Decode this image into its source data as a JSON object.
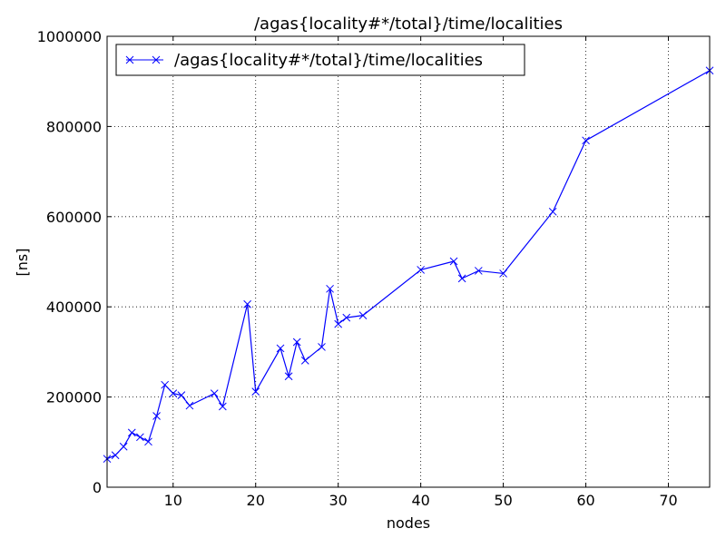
{
  "chart_data": {
    "type": "line",
    "title": "/agas{locality#*/total}/time/localities",
    "xlabel": "nodes",
    "ylabel": "[ns]",
    "xlim": [
      2,
      75
    ],
    "ylim": [
      0,
      1000000
    ],
    "x_ticks": [
      10,
      20,
      30,
      40,
      50,
      60,
      70
    ],
    "y_ticks": [
      0,
      200000,
      400000,
      600000,
      800000,
      1000000
    ],
    "grid": true,
    "legend_position": "top-left",
    "series": [
      {
        "name": "/agas{locality#*/total}/time/localities",
        "color": "#0000ff",
        "marker": "x",
        "x": [
          2,
          3,
          4,
          5,
          6,
          7,
          8,
          9,
          10,
          11,
          12,
          15,
          16,
          19,
          20,
          23,
          24,
          25,
          26,
          28,
          29,
          30,
          31,
          33,
          40,
          44,
          45,
          47,
          50,
          56,
          60,
          75
        ],
        "y": [
          63000,
          71000,
          90000,
          121000,
          111000,
          101000,
          158000,
          227000,
          208000,
          204000,
          181000,
          208000,
          179000,
          406000,
          212000,
          308000,
          246000,
          322000,
          281000,
          311000,
          440000,
          362000,
          376000,
          381000,
          482000,
          501000,
          463000,
          480000,
          474000,
          611000,
          769000,
          924000
        ]
      }
    ]
  }
}
